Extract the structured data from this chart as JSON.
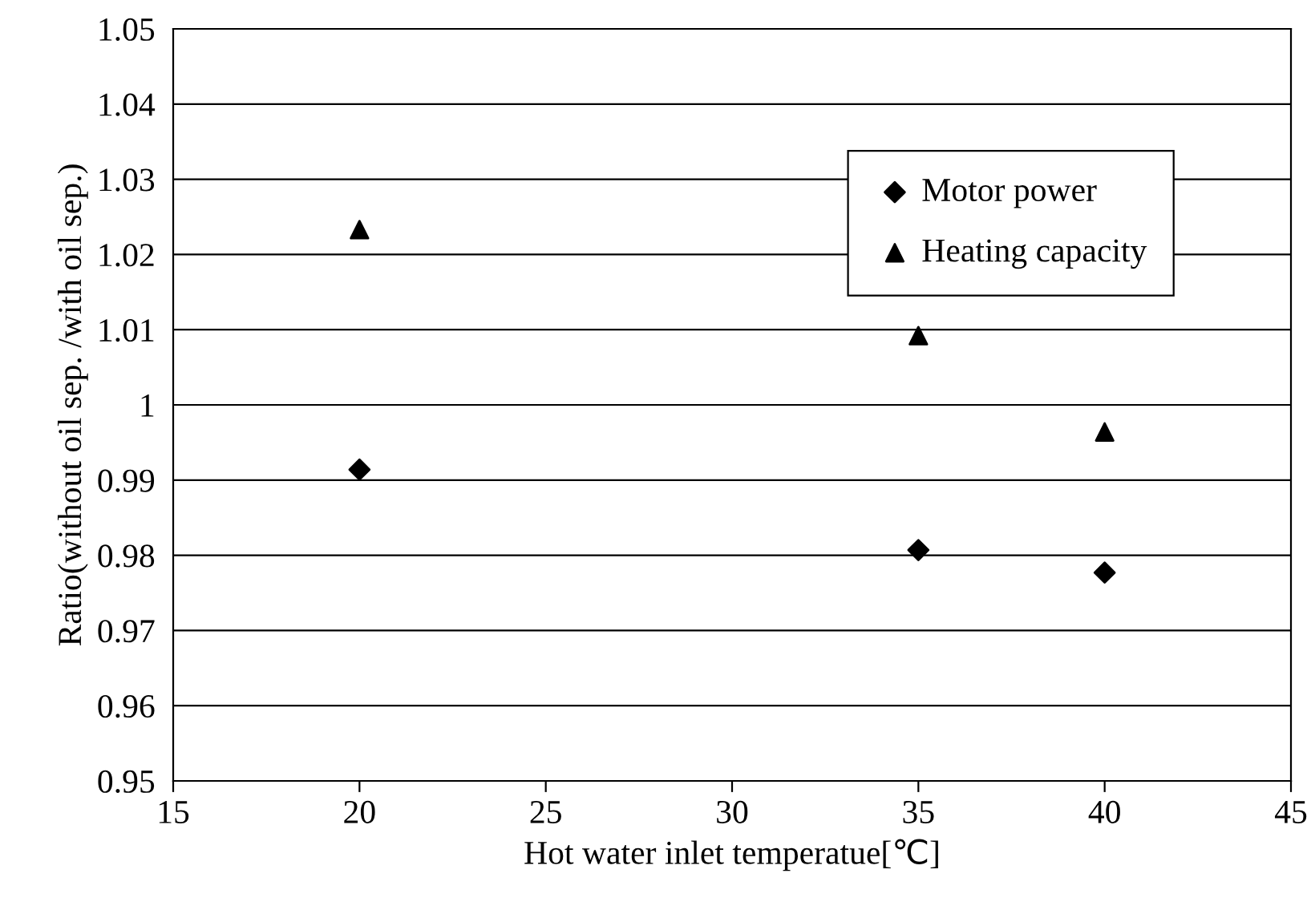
{
  "chart_data": {
    "type": "scatter",
    "xlabel": "Hot water inlet temperatue[℃]",
    "ylabel": "Ratio(without oil sep. /with oil sep.)",
    "x": [
      20,
      35,
      40
    ],
    "series": [
      {
        "name": "Motor power",
        "color": "#000000",
        "marker": "diamond",
        "values": [
          0.9914,
          0.9807,
          0.9777
        ]
      },
      {
        "name": "Heating capacity",
        "color": "#000000",
        "marker": "triangle",
        "values": [
          1.0233,
          1.0092,
          0.9964
        ]
      }
    ],
    "xlim": [
      15,
      45
    ],
    "xticks": [
      15,
      20,
      25,
      30,
      35,
      40,
      45
    ],
    "ylim": [
      0.95,
      1.05
    ],
    "yticks": [
      0.95,
      0.96,
      0.97,
      0.98,
      0.99,
      1,
      1.01,
      1.02,
      1.03,
      1.04,
      1.05
    ],
    "grid": "y",
    "legend": "top right"
  }
}
